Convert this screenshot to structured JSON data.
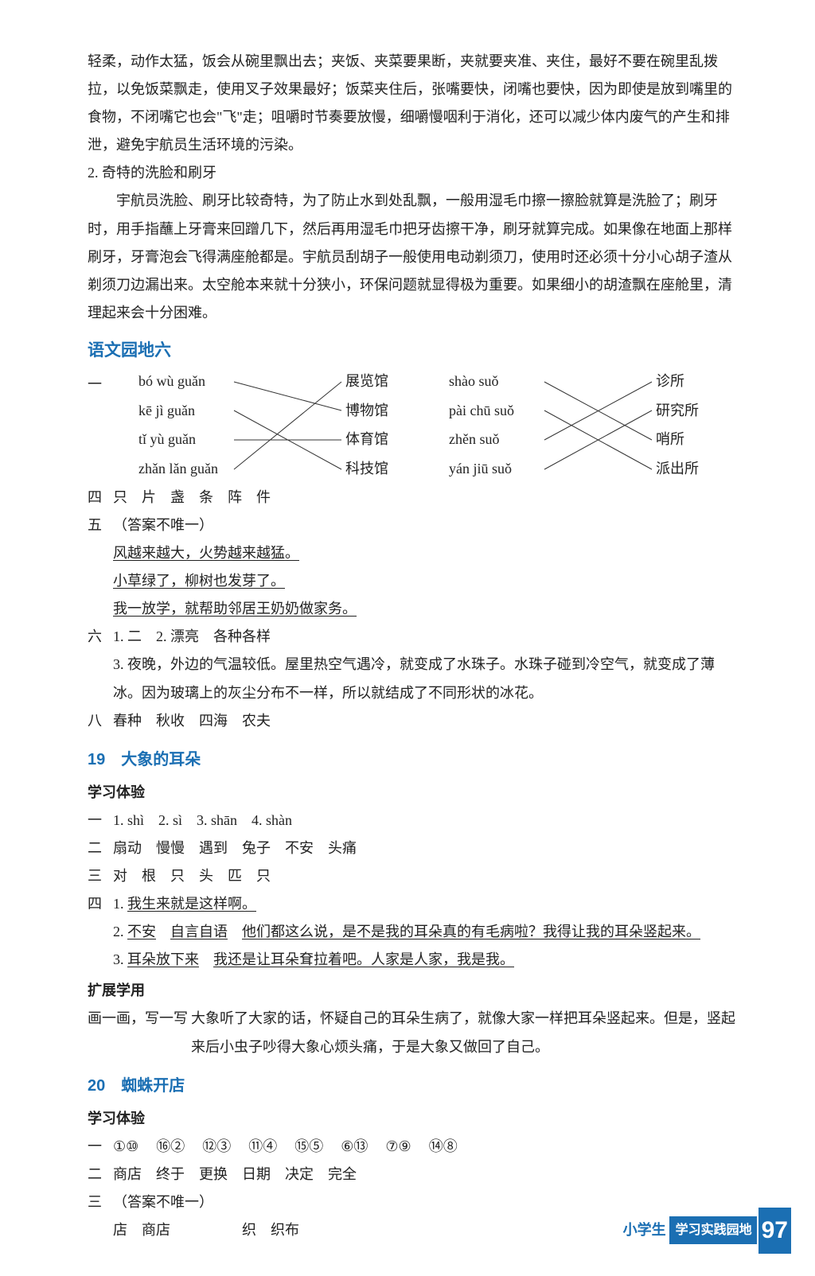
{
  "para1": "轻柔，动作太猛，饭会从碗里飘出去；夹饭、夹菜要果断，夹就要夹准、夹住，最好不要在碗里乱拨拉，以免饭菜飘走，使用叉子效果最好；饭菜夹住后，张嘴要快，闭嘴也要快，因为即使是放到嘴里的食物，不闭嘴它也会\"飞\"走；咀嚼时节奏要放慢，细嚼慢咽利于消化，还可以减少体内废气的产生和排泄，避免宇航员生活环境的污染。",
  "para2_num": "2. 奇特的洗脸和刷牙",
  "para3": "宇航员洗脸、刷牙比较奇特，为了防止水到处乱飘，一般用湿毛巾擦一擦脸就算是洗脸了；刷牙时，用手指蘸上牙膏来回蹭几下，然后再用湿毛巾把牙齿擦干净，刷牙就算完成。如果像在地面上那样刷牙，牙膏泡会飞得满座舱都是。宇航员刮胡子一般使用电动剃须刀，使用时还必须十分小心胡子渣从剃须刀边漏出来。太空舱本来就十分狭小，环保问题就显得极为重要。如果细小的胡渣飘在座舱里，清理起来会十分困难。",
  "sec6_title": "语文园地六",
  "diag": {
    "leftA": [
      "bó wù guǎn",
      "kē jì guǎn",
      "tǐ yù guǎn",
      "zhǎn lǎn guǎn"
    ],
    "rightA": [
      "展览馆",
      "博物馆",
      "体育馆",
      "科技馆"
    ],
    "leftB": [
      "shào suǒ",
      "pài chū suǒ",
      "zhěn suǒ",
      "yán jiū suǒ"
    ],
    "rightB": [
      "诊所",
      "研究所",
      "哨所",
      "派出所"
    ]
  },
  "q4": "只　片　盏　条　阵　件",
  "q5_header": "（答案不唯一）",
  "q5_1": "风越来越大，火势越来越猛。",
  "q5_2": "小草绿了，柳树也发芽了。",
  "q5_3": "我一放学，就帮助邻居王奶奶做家务。",
  "q6_1": "1. 二　2. 漂亮　各种各样",
  "q6_2": "3. 夜晚，外边的气温较低。屋里热空气遇冷，就变成了水珠子。水珠子碰到冷空气，就变成了薄冰。因为玻璃上的灰尘分布不一样，所以就结成了不同形状的冰花。",
  "q8": "春种　秋收　四海　农夫",
  "l19_title": "19　大象的耳朵",
  "l19_sub1": "学习体验",
  "l19_1": "1. shì　2. sì　3. shān　4. shàn",
  "l19_2": "扇动　慢慢　遇到　兔子　不安　头痛",
  "l19_3": "对　根　只　头　匹　只",
  "l19_4_1a": "1. ",
  "l19_4_1b": "我生来就是这样啊。",
  "l19_4_2a": "2. ",
  "l19_4_2b": "不安",
  "l19_4_2c": "自言自语",
  "l19_4_2d": "他们都这么说，是不是我的耳朵真的有毛病啦？我得让我的耳朵竖起来。",
  "l19_4_3a": "3. ",
  "l19_4_3b": "耳朵放下来",
  "l19_4_3c": "我还是让耳朵耷拉着吧。人家是人家，我是我。",
  "l19_ext": "扩展学用",
  "l19_draw_label": "画一画，写一写",
  "l19_draw_text": "大象听了大家的话，怀疑自己的耳朵生病了，就像大家一样把耳朵竖起来。但是，竖起来后小虫子吵得大象心烦头痛，于是大象又做回了自己。",
  "l20_title": "20　蜘蛛开店",
  "l20_sub1": "学习体验",
  "l20_1_pairs": [
    [
      "①",
      "⑩"
    ],
    [
      "⑯",
      "②"
    ],
    [
      "⑫",
      "③"
    ],
    [
      "⑪",
      "④"
    ],
    [
      "⑮",
      "⑤"
    ],
    [
      "⑥",
      "⑬"
    ],
    [
      "⑦",
      "⑨"
    ],
    [
      "⑭",
      "⑧"
    ]
  ],
  "l20_2": "商店　终于　更换　日期　决定　完全",
  "l20_3_header": "（答案不唯一）",
  "l20_3_line": "店　商店　　　　　织　织布",
  "footer_xxs": "小学生",
  "footer_bar": "学习实践园地",
  "footer_num": "97"
}
